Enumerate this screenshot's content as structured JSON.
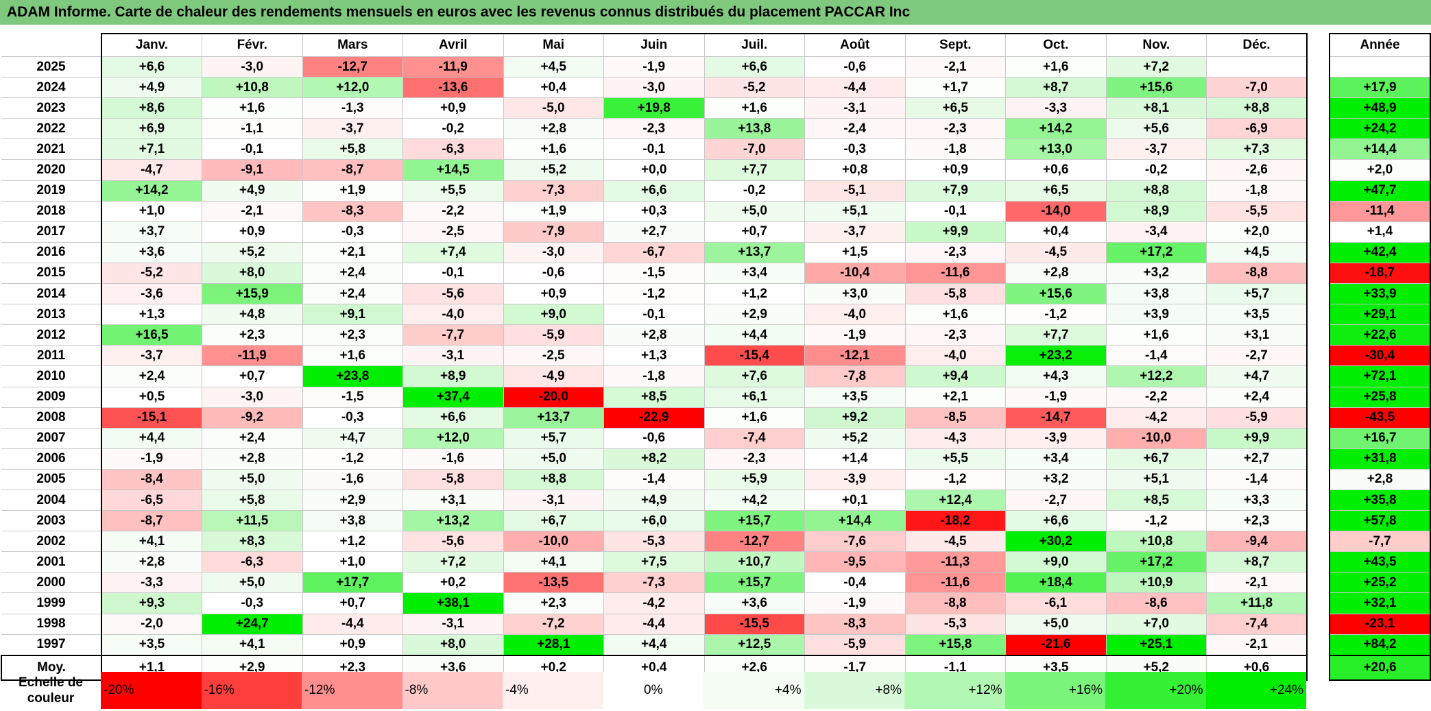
{
  "title": "ADAM Informe. Carte de chaleur des rendements mensuels en euros avec les revenus connus distribués du placement PACCAR Inc",
  "chart_data": {
    "type": "heatmap",
    "columns": [
      "Janv.",
      "Févr.",
      "Mars",
      "Avril",
      "Mai",
      "Juin",
      "Juil.",
      "Août",
      "Sept.",
      "Oct.",
      "Nov.",
      "Déc."
    ],
    "annual_header": "Année",
    "avg_label": "Moy.",
    "rows": [
      {
        "year": "2025",
        "values": [
          "+6,6",
          "-3,0",
          "-12,7",
          "-11,9",
          "+4,5",
          "-1,9",
          "+6,6",
          "-0,6",
          "-2,1",
          "+1,6",
          "+7,2",
          ""
        ],
        "annual": ""
      },
      {
        "year": "2024",
        "values": [
          "+4,9",
          "+10,8",
          "+12,0",
          "-13,6",
          "+0,4",
          "-3,0",
          "-5,2",
          "-4,4",
          "+1,7",
          "+8,7",
          "+15,6",
          "-7,0"
        ],
        "annual": "+17,9"
      },
      {
        "year": "2023",
        "values": [
          "+8,6",
          "+1,6",
          "-1,3",
          "+0,9",
          "-5,0",
          "+19,8",
          "+1,6",
          "-3,1",
          "+6,5",
          "-3,3",
          "+8,1",
          "+8,8"
        ],
        "annual": "+48,9"
      },
      {
        "year": "2022",
        "values": [
          "+6,9",
          "-1,1",
          "-3,7",
          "-0,2",
          "+2,8",
          "-2,3",
          "+13,8",
          "-2,4",
          "-2,3",
          "+14,2",
          "+5,6",
          "-6,9"
        ],
        "annual": "+24,2"
      },
      {
        "year": "2021",
        "values": [
          "+7,1",
          "-0,1",
          "+5,8",
          "-6,3",
          "+1,6",
          "-0,1",
          "-7,0",
          "-0,3",
          "-1,8",
          "+13,0",
          "-3,7",
          "+7,3"
        ],
        "annual": "+14,4"
      },
      {
        "year": "2020",
        "values": [
          "-4,7",
          "-9,1",
          "-8,7",
          "+14,5",
          "+5,2",
          "+0,0",
          "+7,7",
          "+0,8",
          "+0,9",
          "+0,6",
          "-0,2",
          "-2,6"
        ],
        "annual": "+2,0"
      },
      {
        "year": "2019",
        "values": [
          "+14,2",
          "+4,9",
          "+1,9",
          "+5,5",
          "-7,3",
          "+6,6",
          "-0,2",
          "-5,1",
          "+7,9",
          "+6,5",
          "+8,8",
          "-1,8"
        ],
        "annual": "+47,7"
      },
      {
        "year": "2018",
        "values": [
          "+1,0",
          "-2,1",
          "-8,3",
          "-2,2",
          "+1,9",
          "+0,3",
          "+5,0",
          "+5,1",
          "-0,1",
          "-14,0",
          "+8,9",
          "-5,5"
        ],
        "annual": "-11,4"
      },
      {
        "year": "2017",
        "values": [
          "+3,7",
          "+0,9",
          "-0,3",
          "-2,5",
          "-7,9",
          "+2,7",
          "+0,7",
          "-3,7",
          "+9,9",
          "+0,4",
          "-3,4",
          "+2,0"
        ],
        "annual": "+1,4"
      },
      {
        "year": "2016",
        "values": [
          "+3,6",
          "+5,2",
          "+2,1",
          "+7,4",
          "-3,0",
          "-6,7",
          "+13,7",
          "+1,5",
          "-2,3",
          "-4,5",
          "+17,2",
          "+4,5"
        ],
        "annual": "+42,4"
      },
      {
        "year": "2015",
        "values": [
          "-5,2",
          "+8,0",
          "+2,4",
          "-0,1",
          "-0,6",
          "-1,5",
          "+3,4",
          "-10,4",
          "-11,6",
          "+2,8",
          "+3,2",
          "-8,8"
        ],
        "annual": "-18,7"
      },
      {
        "year": "2014",
        "values": [
          "-3,6",
          "+15,9",
          "+2,4",
          "-5,6",
          "+0,9",
          "-1,2",
          "+1,2",
          "+3,0",
          "-5,8",
          "+15,6",
          "+3,8",
          "+5,7"
        ],
        "annual": "+33,9"
      },
      {
        "year": "2013",
        "values": [
          "+1,3",
          "+4,8",
          "+9,1",
          "-4,0",
          "+9,0",
          "-0,1",
          "+2,9",
          "-4,0",
          "+1,6",
          "-1,2",
          "+3,9",
          "+3,5"
        ],
        "annual": "+29,1"
      },
      {
        "year": "2012",
        "values": [
          "+16,5",
          "+2,3",
          "+2,3",
          "-7,7",
          "-5,9",
          "+2,8",
          "+4,4",
          "-1,9",
          "-2,3",
          "+7,7",
          "+1,6",
          "+3,1"
        ],
        "annual": "+22,6"
      },
      {
        "year": "2011",
        "values": [
          "-3,7",
          "-11,9",
          "+1,6",
          "-3,1",
          "-2,5",
          "+1,3",
          "-15,4",
          "-12,1",
          "-4,0",
          "+23,2",
          "-1,4",
          "-2,7"
        ],
        "annual": "-30,4"
      },
      {
        "year": "2010",
        "values": [
          "+2,4",
          "+0,7",
          "+23,8",
          "+8,9",
          "-4,9",
          "-1,8",
          "+7,6",
          "-7,8",
          "+9,4",
          "+4,3",
          "+12,2",
          "+4,7"
        ],
        "annual": "+72,1"
      },
      {
        "year": "2009",
        "values": [
          "+0,5",
          "-3,0",
          "-1,5",
          "+37,4",
          "-20,0",
          "+8,5",
          "+6,1",
          "+3,5",
          "+2,1",
          "-1,9",
          "-2,2",
          "+2,4"
        ],
        "annual": "+25,8"
      },
      {
        "year": "2008",
        "values": [
          "-15,1",
          "-9,2",
          "-0,3",
          "+6,6",
          "+13,7",
          "-22,9",
          "+1,6",
          "+9,2",
          "-8,5",
          "-14,7",
          "-4,2",
          "-5,9"
        ],
        "annual": "-43,5"
      },
      {
        "year": "2007",
        "values": [
          "+4,4",
          "+2,4",
          "+4,7",
          "+12,0",
          "+5,7",
          "-0,6",
          "-7,4",
          "+5,2",
          "-4,3",
          "-3,9",
          "-10,0",
          "+9,9"
        ],
        "annual": "+16,7"
      },
      {
        "year": "2006",
        "values": [
          "-1,9",
          "+2,8",
          "-1,2",
          "-1,6",
          "+5,0",
          "+8,2",
          "-2,3",
          "+1,4",
          "+5,5",
          "+3,4",
          "+6,7",
          "+2,7"
        ],
        "annual": "+31,8"
      },
      {
        "year": "2005",
        "values": [
          "-8,4",
          "+5,0",
          "-1,6",
          "-5,8",
          "+8,8",
          "-1,4",
          "+5,9",
          "-3,9",
          "-1,2",
          "+3,2",
          "+5,1",
          "-1,4"
        ],
        "annual": "+2,8"
      },
      {
        "year": "2004",
        "values": [
          "-6,5",
          "+5,8",
          "+2,9",
          "+3,1",
          "-3,1",
          "+4,9",
          "+4,2",
          "+0,1",
          "+12,4",
          "-2,7",
          "+8,5",
          "+3,3"
        ],
        "annual": "+35,8"
      },
      {
        "year": "2003",
        "values": [
          "-8,7",
          "+11,5",
          "+3,8",
          "+13,2",
          "+6,7",
          "+6,0",
          "+15,7",
          "+14,4",
          "-18,2",
          "+6,6",
          "-1,2",
          "+2,3"
        ],
        "annual": "+57,8"
      },
      {
        "year": "2002",
        "values": [
          "+4,1",
          "+8,3",
          "+1,2",
          "-5,6",
          "-10,0",
          "-5,3",
          "-12,7",
          "-7,6",
          "-4,5",
          "+30,2",
          "+10,8",
          "-9,4"
        ],
        "annual": "-7,7"
      },
      {
        "year": "2001",
        "values": [
          "+2,8",
          "-6,3",
          "+1,0",
          "+7,2",
          "+4,1",
          "+7,5",
          "+10,7",
          "-9,5",
          "-11,3",
          "+9,0",
          "+17,2",
          "+8,7"
        ],
        "annual": "+43,5"
      },
      {
        "year": "2000",
        "values": [
          "-3,3",
          "+5,0",
          "+17,7",
          "+0,2",
          "-13,5",
          "-7,3",
          "+15,7",
          "-0,4",
          "-11,6",
          "+18,4",
          "+10,9",
          "-2,1"
        ],
        "annual": "+25,2"
      },
      {
        "year": "1999",
        "values": [
          "+9,3",
          "-0,3",
          "+0,7",
          "+38,1",
          "+2,3",
          "-4,2",
          "+3,6",
          "-1,9",
          "-8,8",
          "-6,1",
          "-8,6",
          "+11,8"
        ],
        "annual": "+32,1"
      },
      {
        "year": "1998",
        "values": [
          "-2,0",
          "+24,7",
          "-4,4",
          "-3,1",
          "-7,2",
          "-4,4",
          "-15,5",
          "-8,3",
          "-5,3",
          "+5,0",
          "+7,0",
          "-7,4"
        ],
        "annual": "-23,1"
      },
      {
        "year": "1997",
        "values": [
          "+3,5",
          "+4,1",
          "+0,9",
          "+8,0",
          "+28,1",
          "+4,4",
          "+12,5",
          "-5,9",
          "+15,8",
          "-21,6",
          "+25,1",
          "-2,1"
        ],
        "annual": "+84,2"
      }
    ],
    "averages": {
      "values": [
        "+1,1",
        "+2,9",
        "+2,3",
        "+3,6",
        "+0,2",
        "+0,4",
        "+2,6",
        "-1,7",
        "-1,1",
        "+3,5",
        "+5,2",
        "+0,6"
      ],
      "annual": "+20,6"
    },
    "scale": {
      "label_line1": "Echelle de",
      "label_line2": "couleur",
      "steps": [
        {
          "label": "-20%",
          "value": -20
        },
        {
          "label": "-16%",
          "value": -16
        },
        {
          "label": "-12%",
          "value": -12
        },
        {
          "label": "-8%",
          "value": -8
        },
        {
          "label": "-4%",
          "value": -4
        },
        {
          "label": "0%",
          "value": 0
        },
        {
          "label": "+4%",
          "value": 4
        },
        {
          "label": "+8%",
          "value": 8
        },
        {
          "label": "+12%",
          "value": 12
        },
        {
          "label": "+16%",
          "value": 16
        },
        {
          "label": "+20%",
          "value": 20
        },
        {
          "label": "+24%",
          "value": 24
        }
      ]
    },
    "colors": {
      "title_bg": "#7fc97f",
      "neg_max": "#ff0000",
      "neutral": "#ffffff",
      "pos_max": "#00ee00"
    }
  }
}
